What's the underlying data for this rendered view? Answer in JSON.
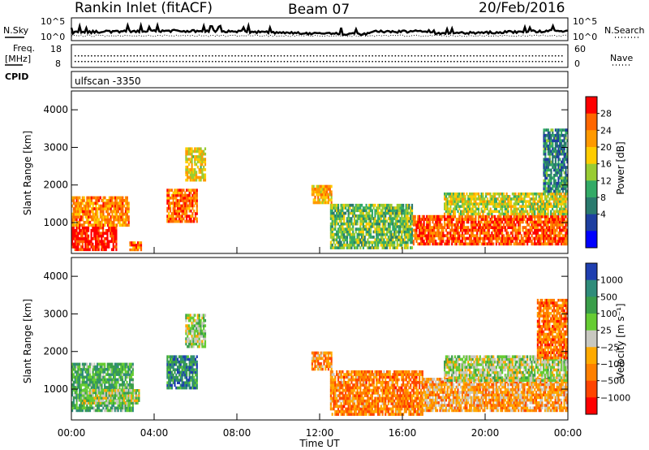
{
  "header": {
    "station": "Rankin Inlet (fitACF)",
    "beam": "Beam 07",
    "date": "20/Feb/2016"
  },
  "top_panels": {
    "nsky_label": "N.Sky",
    "nsky_ticks": [
      "10^5",
      "10^0"
    ],
    "nsearch_label": "N.Search",
    "nsearch_ticks": [
      "10^5",
      "10^0"
    ],
    "freq_label_1": "Freq.",
    "freq_label_2": "[MHz]",
    "freq_ticks": [
      "18",
      "8"
    ],
    "nave_label": "Nave",
    "nave_ticks": [
      "60",
      "0"
    ],
    "cpid_label": "CPID",
    "cpid_value": "ulfscan -3350"
  },
  "chart_data": [
    {
      "type": "heatmap",
      "name": "power",
      "ylabel": "Slant Range [km]",
      "xlabel": "",
      "ylim": [
        180,
        4500
      ],
      "yticks": [
        "4000",
        "3000",
        "2000",
        "1000"
      ],
      "colorbar": {
        "label": "Power [dB]",
        "ticks": [
          "28",
          "24",
          "20",
          "16",
          "12",
          "8",
          "4"
        ],
        "colors": [
          "#ff0000",
          "#ff6600",
          "#ff9900",
          "#ffcc00",
          "#99cc33",
          "#33aa66",
          "#2a7a6e",
          "#1e3fa0",
          "#0000ff"
        ]
      },
      "bands": [
        {
          "t0": 0.0,
          "t1": 2.2,
          "r0": 250,
          "r1": 900,
          "level": 0.95
        },
        {
          "t0": 0.0,
          "t1": 2.8,
          "r0": 900,
          "r1": 1700,
          "level": 0.75
        },
        {
          "t0": 2.8,
          "t1": 3.4,
          "r0": 250,
          "r1": 500,
          "level": 0.8
        },
        {
          "t0": 4.6,
          "t1": 6.1,
          "r0": 1000,
          "r1": 1900,
          "level": 0.8
        },
        {
          "t0": 5.5,
          "t1": 6.5,
          "r0": 2100,
          "r1": 3000,
          "level": 0.6
        },
        {
          "t0": 11.6,
          "t1": 12.6,
          "r0": 1500,
          "r1": 2000,
          "level": 0.7
        },
        {
          "t0": 12.5,
          "t1": 16.5,
          "r0": 300,
          "r1": 1500,
          "level": 0.45
        },
        {
          "t0": 16.5,
          "t1": 24.0,
          "r0": 400,
          "r1": 1200,
          "level": 0.85
        },
        {
          "t0": 18.0,
          "t1": 24.0,
          "r0": 1200,
          "r1": 1800,
          "level": 0.55
        },
        {
          "t0": 22.8,
          "t1": 24.0,
          "r0": 1800,
          "r1": 3500,
          "level": 0.3
        }
      ]
    },
    {
      "type": "heatmap",
      "name": "velocity",
      "ylabel": "Slant Range [km]",
      "xlabel": "Time UT",
      "ylim": [
        180,
        4500
      ],
      "yticks": [
        "4000",
        "3000",
        "2000",
        "1000"
      ],
      "xticks": [
        "00:00",
        "04:00",
        "08:00",
        "12:00",
        "16:00",
        "20:00",
        "00:00"
      ],
      "xlim": [
        0,
        24
      ],
      "colorbar": {
        "label": "Velocity [m s⁻¹]",
        "ticks": [
          "1000",
          "500",
          "100",
          "25",
          "−25",
          "−100",
          "−500",
          "−1000"
        ],
        "colors": [
          "#1f3fb0",
          "#2f8c7a",
          "#3a9e4a",
          "#66cc33",
          "#c8c8c0",
          "#ffaa00",
          "#ff8000",
          "#ff4400",
          "#ff0000"
        ]
      },
      "bands": [
        {
          "t0": 0.0,
          "t1": 3.0,
          "r0": 400,
          "r1": 1700,
          "level": 0.3
        },
        {
          "t0": 0.5,
          "t1": 3.3,
          "r0": 600,
          "r1": 1000,
          "level": 0.45
        },
        {
          "t0": 4.6,
          "t1": 6.1,
          "r0": 1000,
          "r1": 1900,
          "level": 0.2
        },
        {
          "t0": 5.5,
          "t1": 6.5,
          "r0": 2100,
          "r1": 3000,
          "level": 0.45
        },
        {
          "t0": 11.6,
          "t1": 12.6,
          "r0": 1500,
          "r1": 2000,
          "level": 0.7
        },
        {
          "t0": 12.5,
          "t1": 17.0,
          "r0": 300,
          "r1": 1500,
          "level": 0.72
        },
        {
          "t0": 17.0,
          "t1": 24.0,
          "r0": 400,
          "r1": 1300,
          "level": 0.65
        },
        {
          "t0": 18.0,
          "t1": 24.0,
          "r0": 1200,
          "r1": 1900,
          "level": 0.45
        },
        {
          "t0": 22.5,
          "t1": 24.0,
          "r0": 1800,
          "r1": 3400,
          "level": 0.75
        }
      ]
    }
  ]
}
